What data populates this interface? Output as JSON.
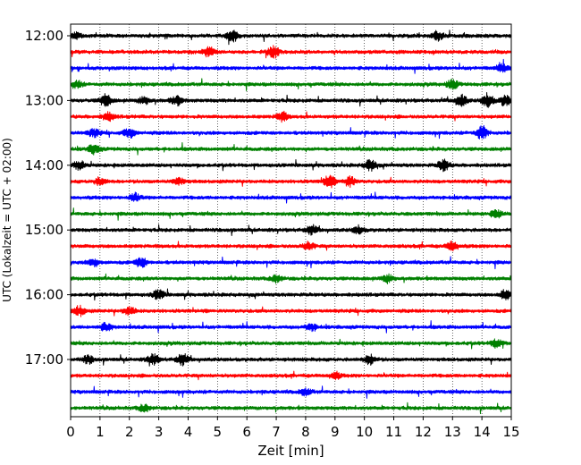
{
  "chart_data": {
    "type": "line",
    "subtype": "helicorder (seismogram drum plot)",
    "xlabel": "Zeit  [min]",
    "ylabel": "UTC (Lokalzeit = UTC + 02:00)",
    "xlim": [
      0,
      15
    ],
    "x_ticks": [
      "0",
      "1",
      "2",
      "3",
      "4",
      "5",
      "6",
      "7",
      "8",
      "9",
      "10",
      "11",
      "12",
      "13",
      "14",
      "15"
    ],
    "y_tick_labels": [
      "12:00",
      "13:00",
      "14:00",
      "15:00",
      "16:00",
      "17:00"
    ],
    "grid": "vertical dotted at each minute",
    "trace_colors": [
      "#000000",
      "#ff0000",
      "#0000ff",
      "#008000"
    ],
    "rows": [
      {
        "start": "12:00",
        "color": "#000000",
        "events": [
          [
            5.5,
            2.0
          ],
          [
            0.2,
            1.0
          ],
          [
            12.5,
            1.4
          ]
        ]
      },
      {
        "start": "12:15",
        "color": "#ff0000",
        "events": [
          [
            4.7,
            1.5
          ],
          [
            6.9,
            2.0
          ]
        ]
      },
      {
        "start": "12:30",
        "color": "#0000ff",
        "events": [
          [
            14.7,
            1.3
          ]
        ]
      },
      {
        "start": "12:45",
        "color": "#008000",
        "events": [
          [
            0.2,
            1.2
          ],
          [
            13.0,
            1.5
          ]
        ]
      },
      {
        "start": "13:00",
        "color": "#000000",
        "events": [
          [
            1.2,
            2.0
          ],
          [
            2.5,
            1.2
          ],
          [
            3.6,
            1.5
          ],
          [
            13.3,
            1.8
          ],
          [
            14.2,
            2.2
          ],
          [
            14.8,
            1.6
          ]
        ]
      },
      {
        "start": "13:15",
        "color": "#ff0000",
        "events": [
          [
            1.3,
            1.3
          ],
          [
            7.2,
            1.5
          ]
        ]
      },
      {
        "start": "13:30",
        "color": "#0000ff",
        "events": [
          [
            0.8,
            1.3
          ],
          [
            2.0,
            1.6
          ],
          [
            14.0,
            2.2
          ]
        ]
      },
      {
        "start": "13:45",
        "color": "#008000",
        "events": [
          [
            0.8,
            1.6
          ]
        ]
      },
      {
        "start": "14:00",
        "color": "#000000",
        "events": [
          [
            0.3,
            1.5
          ],
          [
            10.2,
            1.8
          ],
          [
            12.7,
            1.8
          ]
        ]
      },
      {
        "start": "14:15",
        "color": "#ff0000",
        "events": [
          [
            1.0,
            1.2
          ],
          [
            8.8,
            2.0
          ],
          [
            9.5,
            1.6
          ],
          [
            3.7,
            1.2
          ]
        ]
      },
      {
        "start": "14:30",
        "color": "#0000ff",
        "events": [
          [
            2.2,
            1.3
          ]
        ]
      },
      {
        "start": "14:45",
        "color": "#008000",
        "events": [
          [
            14.5,
            1.2
          ]
        ]
      },
      {
        "start": "15:00",
        "color": "#000000",
        "events": [
          [
            8.2,
            1.4
          ],
          [
            9.8,
            1.2
          ]
        ]
      },
      {
        "start": "15:15",
        "color": "#ff0000",
        "events": [
          [
            13.0,
            1.5
          ],
          [
            8.1,
            1.3
          ]
        ]
      },
      {
        "start": "15:30",
        "color": "#0000ff",
        "events": [
          [
            2.4,
            1.6
          ],
          [
            0.8,
            1.2
          ]
        ]
      },
      {
        "start": "15:45",
        "color": "#008000",
        "events": [
          [
            10.8,
            1.3
          ],
          [
            7.0,
            1.1
          ]
        ]
      },
      {
        "start": "16:00",
        "color": "#000000",
        "events": [
          [
            3.0,
            1.6
          ],
          [
            14.8,
            1.5
          ]
        ]
      },
      {
        "start": "16:15",
        "color": "#ff0000",
        "events": [
          [
            0.3,
            1.6
          ],
          [
            2.0,
            1.3
          ]
        ]
      },
      {
        "start": "16:30",
        "color": "#0000ff",
        "events": [
          [
            1.2,
            1.3
          ],
          [
            8.2,
            1.1
          ]
        ]
      },
      {
        "start": "16:45",
        "color": "#008000",
        "events": [
          [
            14.5,
            1.3
          ]
        ]
      },
      {
        "start": "17:00",
        "color": "#000000",
        "events": [
          [
            0.6,
            1.2
          ],
          [
            2.8,
            1.8
          ],
          [
            3.8,
            1.8
          ],
          [
            10.2,
            1.6
          ]
        ]
      },
      {
        "start": "17:15",
        "color": "#ff0000",
        "events": [
          [
            9.0,
            1.1
          ]
        ]
      },
      {
        "start": "17:30",
        "color": "#0000ff",
        "events": [
          [
            8.0,
            1.1
          ]
        ]
      },
      {
        "start": "17:45",
        "color": "#008000",
        "events": [
          [
            2.5,
            1.1
          ]
        ]
      }
    ]
  }
}
